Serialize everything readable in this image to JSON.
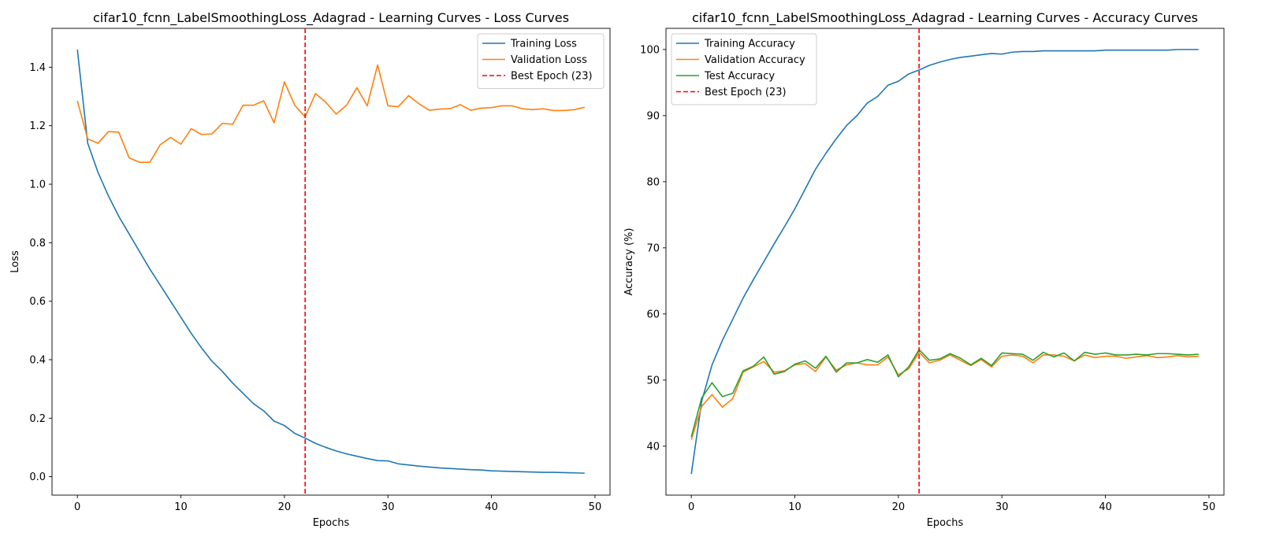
{
  "chart_data": [
    {
      "type": "line",
      "title": "cifar10_fcnn_LabelSmoothingLoss_Adagrad - Learning Curves - Loss Curves",
      "xlabel": "Epochs",
      "ylabel": "Loss",
      "xlim": [
        -2.45,
        51.45
      ],
      "ylim": [
        -0.063,
        1.533
      ],
      "xticks": [
        0,
        10,
        20,
        30,
        40,
        50
      ],
      "yticks": [
        0.0,
        0.2,
        0.4,
        0.6,
        0.8,
        1.0,
        1.2,
        1.4
      ],
      "ytick_labels": [
        "0.0",
        "0.2",
        "0.4",
        "0.6",
        "0.8",
        "1.0",
        "1.2",
        "1.4"
      ],
      "grid": false,
      "legend_position": "top-right",
      "x": [
        0,
        1,
        2,
        3,
        4,
        5,
        6,
        7,
        8,
        9,
        10,
        11,
        12,
        13,
        14,
        15,
        16,
        17,
        18,
        19,
        20,
        21,
        22,
        23,
        24,
        25,
        26,
        27,
        28,
        29,
        30,
        31,
        32,
        33,
        34,
        35,
        36,
        37,
        38,
        39,
        40,
        41,
        42,
        43,
        44,
        45,
        46,
        47,
        48,
        49
      ],
      "series": [
        {
          "name": "Training Loss",
          "color": "#1f77b4",
          "style": "solid",
          "values": [
            1.46,
            1.14,
            1.04,
            0.96,
            0.89,
            0.83,
            0.77,
            0.71,
            0.655,
            0.6,
            0.545,
            0.49,
            0.44,
            0.395,
            0.36,
            0.32,
            0.285,
            0.25,
            0.225,
            0.19,
            0.175,
            0.148,
            0.132,
            0.114,
            0.1,
            0.088,
            0.078,
            0.07,
            0.062,
            0.055,
            0.054,
            0.044,
            0.04,
            0.036,
            0.033,
            0.03,
            0.028,
            0.026,
            0.024,
            0.023,
            0.02,
            0.019,
            0.018,
            0.017,
            0.016,
            0.015,
            0.015,
            0.014,
            0.013,
            0.012
          ]
        },
        {
          "name": "Validation Loss",
          "color": "#ff7f0e",
          "style": "solid",
          "values": [
            1.285,
            1.155,
            1.14,
            1.18,
            1.178,
            1.09,
            1.075,
            1.075,
            1.135,
            1.16,
            1.137,
            1.19,
            1.17,
            1.172,
            1.208,
            1.205,
            1.27,
            1.27,
            1.285,
            1.21,
            1.35,
            1.27,
            1.23,
            1.31,
            1.28,
            1.24,
            1.27,
            1.33,
            1.268,
            1.408,
            1.268,
            1.265,
            1.303,
            1.275,
            1.253,
            1.257,
            1.258,
            1.272,
            1.253,
            1.26,
            1.262,
            1.268,
            1.268,
            1.258,
            1.255,
            1.258,
            1.252,
            1.252,
            1.255,
            1.263
          ]
        }
      ],
      "vline": {
        "x": 22,
        "name": "Best Epoch (23)",
        "color": "#ff0000",
        "style": "dashed"
      }
    },
    {
      "type": "line",
      "title": "cifar10_fcnn_LabelSmoothingLoss_Adagrad - Learning Curves - Accuracy Curves",
      "xlabel": "Epochs",
      "ylabel": "Accuracy (%)",
      "xlim": [
        -2.45,
        51.45
      ],
      "ylim": [
        32.6,
        103.2
      ],
      "xticks": [
        0,
        10,
        20,
        30,
        40,
        50
      ],
      "yticks": [
        40,
        50,
        60,
        70,
        80,
        90,
        100
      ],
      "ytick_labels": [
        "40",
        "50",
        "60",
        "70",
        "80",
        "90",
        "100"
      ],
      "grid": false,
      "legend_position": "top-left",
      "x": [
        0,
        1,
        2,
        3,
        4,
        5,
        6,
        7,
        8,
        9,
        10,
        11,
        12,
        13,
        14,
        15,
        16,
        17,
        18,
        19,
        20,
        21,
        22,
        23,
        24,
        25,
        26,
        27,
        28,
        29,
        30,
        31,
        32,
        33,
        34,
        35,
        36,
        37,
        38,
        39,
        40,
        41,
        42,
        43,
        44,
        45,
        46,
        47,
        48,
        49
      ],
      "series": [
        {
          "name": "Training Accuracy",
          "color": "#1f77b4",
          "style": "solid",
          "values": [
            35.8,
            46.8,
            52.3,
            56.0,
            59.2,
            62.4,
            65.2,
            67.9,
            70.6,
            73.2,
            75.9,
            78.9,
            81.9,
            84.3,
            86.5,
            88.5,
            90.0,
            91.9,
            92.9,
            94.6,
            95.2,
            96.3,
            96.9,
            97.6,
            98.1,
            98.5,
            98.8,
            99.0,
            99.2,
            99.4,
            99.3,
            99.6,
            99.7,
            99.7,
            99.8,
            99.8,
            99.8,
            99.8,
            99.8,
            99.8,
            99.9,
            99.9,
            99.9,
            99.9,
            99.9,
            99.9,
            99.9,
            100.0,
            100.0,
            100.0
          ]
        },
        {
          "name": "Validation Accuracy",
          "color": "#ff7f0e",
          "style": "solid",
          "values": [
            41.0,
            46.0,
            47.8,
            45.9,
            47.2,
            51.2,
            52.0,
            52.8,
            51.2,
            51.4,
            52.3,
            52.5,
            51.3,
            53.5,
            51.5,
            52.3,
            52.6,
            52.3,
            52.3,
            53.5,
            50.8,
            51.7,
            54.2,
            52.6,
            53.0,
            53.8,
            53.0,
            52.2,
            53.1,
            52.0,
            53.6,
            53.8,
            53.6,
            52.6,
            53.8,
            53.8,
            53.6,
            52.9,
            53.8,
            53.4,
            53.6,
            53.6,
            53.3,
            53.5,
            53.7,
            53.4,
            53.5,
            53.7,
            53.5,
            53.6
          ]
        },
        {
          "name": "Test Accuracy",
          "color": "#2ca02c",
          "style": "solid",
          "values": [
            41.4,
            47.3,
            49.6,
            47.5,
            48.0,
            51.4,
            52.1,
            53.5,
            50.9,
            51.3,
            52.4,
            52.9,
            51.8,
            53.6,
            51.2,
            52.6,
            52.6,
            53.1,
            52.7,
            53.8,
            50.5,
            52.0,
            54.6,
            53.0,
            53.2,
            54.0,
            53.3,
            52.3,
            53.3,
            52.2,
            54.1,
            54.0,
            53.9,
            53.0,
            54.2,
            53.5,
            54.1,
            52.9,
            54.2,
            53.9,
            54.1,
            53.8,
            53.8,
            53.9,
            53.8,
            54.0,
            54.0,
            53.9,
            53.8,
            53.9
          ]
        }
      ],
      "vline": {
        "x": 22,
        "name": "Best Epoch (23)",
        "color": "#ff0000",
        "style": "dashed"
      }
    }
  ]
}
